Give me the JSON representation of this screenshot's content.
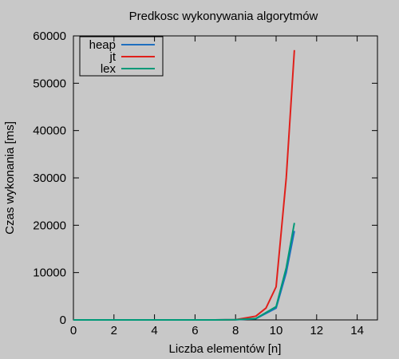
{
  "chart_data": {
    "type": "line",
    "title": "Predkosc wykonywania algorytmów",
    "xlabel": "Liczba elementów [n]",
    "ylabel": "Czas wykonania [ms]",
    "xlim": [
      0,
      15
    ],
    "ylim": [
      0,
      60000
    ],
    "xticks": [
      0,
      2,
      4,
      6,
      8,
      10,
      12,
      14
    ],
    "yticks": [
      0,
      10000,
      20000,
      30000,
      40000,
      50000,
      60000
    ],
    "grid": false,
    "legend_position": "top-left",
    "series": [
      {
        "name": "heap",
        "color": "#1f6fbf",
        "x": [
          0,
          1,
          2,
          3,
          4,
          5,
          6,
          7,
          8,
          9,
          10,
          10.5,
          10.9
        ],
        "y": [
          0,
          0,
          0,
          0,
          0,
          0,
          0,
          0,
          30,
          250,
          2500,
          10000,
          18800
        ]
      },
      {
        "name": "jt",
        "color": "#e0201b",
        "x": [
          0,
          1,
          2,
          3,
          4,
          5,
          6,
          7,
          8,
          9,
          9.5,
          10,
          10.5,
          10.9
        ],
        "y": [
          0,
          0,
          0,
          0,
          0,
          0,
          0,
          0,
          50,
          800,
          2500,
          7000,
          30000,
          57000
        ]
      },
      {
        "name": "lex",
        "color": "#009977",
        "x": [
          0,
          1,
          2,
          3,
          4,
          5,
          6,
          7,
          8,
          9,
          10,
          10.5,
          10.9
        ],
        "y": [
          0,
          0,
          0,
          0,
          0,
          0,
          0,
          0,
          35,
          280,
          2800,
          11000,
          20500
        ]
      }
    ]
  }
}
